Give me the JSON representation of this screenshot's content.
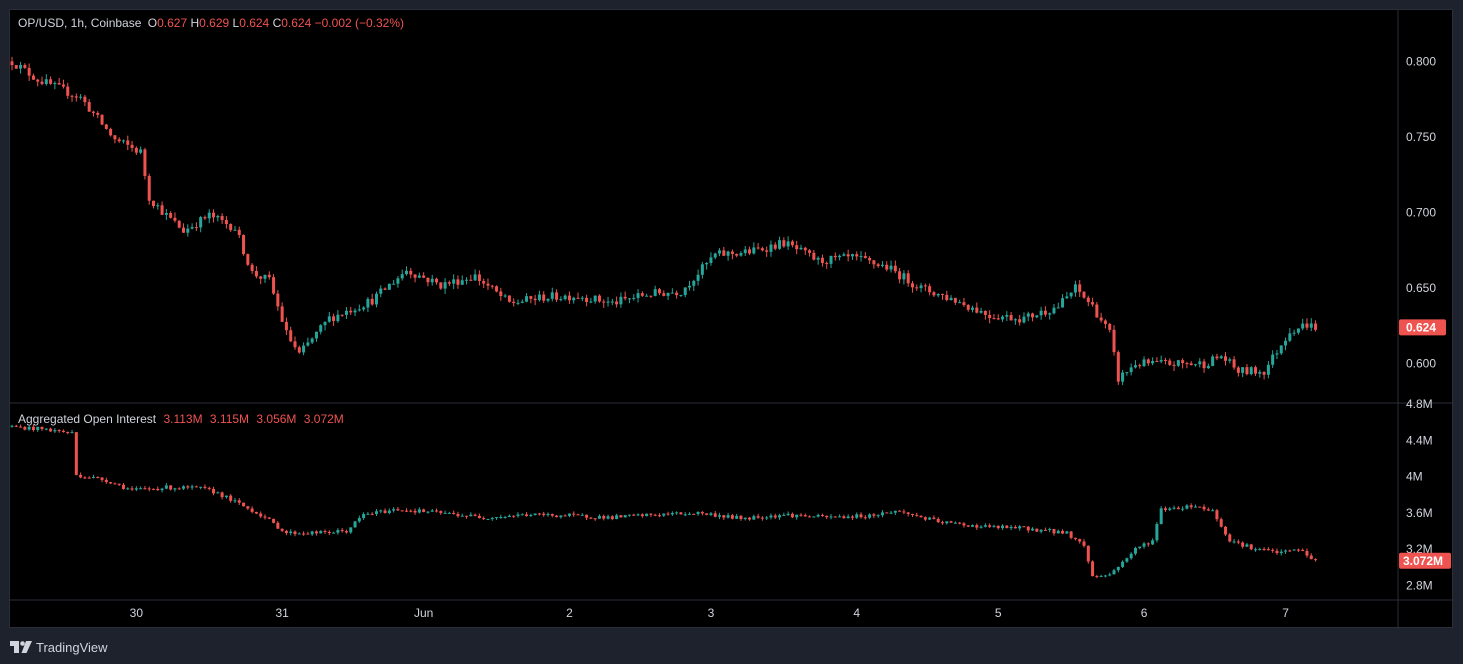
{
  "header": {
    "symbol": "OP/USD, 1h, Coinbase",
    "o_label": "O",
    "o_value": "0.627",
    "h_label": "H",
    "h_value": "0.629",
    "l_label": "L",
    "l_value": "0.624",
    "c_label": "C",
    "c_value": "0.624",
    "change": "−0.002 (−0.32%)"
  },
  "oi_header": {
    "title": "Aggregated Open Interest",
    "values": [
      "3.113M",
      "3.115M",
      "3.056M",
      "3.072M"
    ]
  },
  "colors": {
    "up": "#26a69a",
    "down": "#ef5350",
    "background": "#000000",
    "grid": "#2a2e39",
    "text": "#d1d4dc",
    "frame": "#1e222d"
  },
  "footer": {
    "brand": "TradingView",
    "logo_icon": "tradingview-logo-icon"
  },
  "chart_data": [
    {
      "type": "candlestick",
      "title": "OP/USD, 1h, Coinbase",
      "y_ticks": [
        "0.800",
        "0.750",
        "0.700",
        "0.650",
        "0.600"
      ],
      "ylim": [
        0.574,
        0.834
      ],
      "last_price": "0.624",
      "x_ticks": [
        "30",
        "31",
        "Jun",
        "2",
        "3",
        "4",
        "5",
        "6",
        "7"
      ],
      "close_path": [
        [
          0,
          0.8
        ],
        [
          6,
          0.788
        ],
        [
          16,
          0.776
        ],
        [
          24,
          0.748
        ],
        [
          30,
          0.74
        ],
        [
          32,
          0.71
        ],
        [
          36,
          0.698
        ],
        [
          40,
          0.688
        ],
        [
          46,
          0.698
        ],
        [
          52,
          0.69
        ],
        [
          56,
          0.66
        ],
        [
          60,
          0.655
        ],
        [
          64,
          0.62
        ],
        [
          67,
          0.606
        ],
        [
          74,
          0.63
        ],
        [
          84,
          0.642
        ],
        [
          92,
          0.662
        ],
        [
          100,
          0.652
        ],
        [
          108,
          0.658
        ],
        [
          116,
          0.64
        ],
        [
          124,
          0.644
        ],
        [
          132,
          0.645
        ],
        [
          140,
          0.64
        ],
        [
          148,
          0.646
        ],
        [
          156,
          0.648
        ],
        [
          164,
          0.672
        ],
        [
          172,
          0.674
        ],
        [
          180,
          0.68
        ],
        [
          188,
          0.668
        ],
        [
          196,
          0.67
        ],
        [
          204,
          0.664
        ],
        [
          212,
          0.65
        ],
        [
          220,
          0.642
        ],
        [
          228,
          0.632
        ],
        [
          236,
          0.63
        ],
        [
          244,
          0.638
        ],
        [
          248,
          0.65
        ],
        [
          252,
          0.638
        ],
        [
          256,
          0.62
        ],
        [
          258,
          0.59
        ],
        [
          262,
          0.6
        ],
        [
          270,
          0.6
        ],
        [
          278,
          0.6
        ],
        [
          282,
          0.605
        ],
        [
          286,
          0.595
        ],
        [
          292,
          0.595
        ],
        [
          298,
          0.622
        ],
        [
          302,
          0.626
        ],
        [
          304,
          0.624
        ]
      ]
    },
    {
      "type": "candlestick",
      "title": "Aggregated Open Interest",
      "y_ticks": [
        "4.8M",
        "4.4M",
        "4M",
        "3.6M",
        "3.2M",
        "2.8M"
      ],
      "ylim": [
        2.64,
        4.8
      ],
      "last_value": "3.072M",
      "close_path": [
        [
          0,
          4.55
        ],
        [
          8,
          4.52
        ],
        [
          14,
          4.48
        ],
        [
          15,
          4.02
        ],
        [
          22,
          3.96
        ],
        [
          28,
          3.85
        ],
        [
          36,
          3.88
        ],
        [
          44,
          3.87
        ],
        [
          48,
          3.82
        ],
        [
          52,
          3.72
        ],
        [
          58,
          3.58
        ],
        [
          64,
          3.38
        ],
        [
          72,
          3.38
        ],
        [
          78,
          3.4
        ],
        [
          82,
          3.58
        ],
        [
          90,
          3.64
        ],
        [
          100,
          3.6
        ],
        [
          110,
          3.55
        ],
        [
          120,
          3.58
        ],
        [
          130,
          3.57
        ],
        [
          140,
          3.55
        ],
        [
          150,
          3.58
        ],
        [
          160,
          3.6
        ],
        [
          170,
          3.54
        ],
        [
          180,
          3.58
        ],
        [
          190,
          3.55
        ],
        [
          200,
          3.57
        ],
        [
          206,
          3.62
        ],
        [
          210,
          3.58
        ],
        [
          216,
          3.5
        ],
        [
          226,
          3.45
        ],
        [
          236,
          3.43
        ],
        [
          246,
          3.38
        ],
        [
          250,
          3.24
        ],
        [
          252,
          2.9
        ],
        [
          256,
          2.92
        ],
        [
          262,
          3.2
        ],
        [
          266,
          3.3
        ],
        [
          268,
          3.64
        ],
        [
          276,
          3.68
        ],
        [
          280,
          3.62
        ],
        [
          284,
          3.3
        ],
        [
          290,
          3.2
        ],
        [
          296,
          3.16
        ],
        [
          300,
          3.2
        ],
        [
          304,
          3.07
        ]
      ]
    }
  ]
}
